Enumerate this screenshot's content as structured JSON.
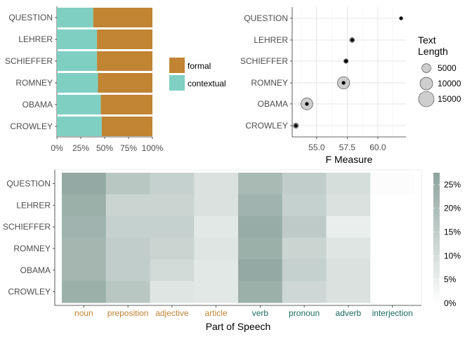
{
  "chart_data": [
    {
      "type": "bar",
      "orientation": "horizontal",
      "stacked": true,
      "categories": [
        "QUESTION",
        "LEHRER",
        "SCHIEFFER",
        "ROMNEY",
        "OBAMA",
        "CROWLEY"
      ],
      "series": [
        {
          "name": "contextual",
          "values": [
            0.38,
            0.42,
            0.42,
            0.43,
            0.46,
            0.47
          ],
          "color": "#7fcfc3"
        },
        {
          "name": "formal",
          "values": [
            0.62,
            0.58,
            0.58,
            0.57,
            0.54,
            0.53
          ],
          "color": "#c08433"
        }
      ],
      "x_ticks": [
        "0%",
        "25%",
        "50%",
        "75%",
        "100%"
      ],
      "legend_labels": [
        "formal",
        "contextual"
      ],
      "xlim": [
        0,
        1
      ]
    },
    {
      "type": "scatter",
      "categories": [
        "QUESTION",
        "LEHRER",
        "SCHIEFFER",
        "ROMNEY",
        "OBAMA",
        "CROWLEY"
      ],
      "f_measure": [
        61.9,
        57.9,
        57.4,
        57.2,
        54.2,
        53.3
      ],
      "text_length": [
        300,
        1500,
        1300,
        9500,
        8800,
        1700
      ],
      "xlabel": "F Measure",
      "x_ticks": [
        55.0,
        57.5,
        60.0
      ],
      "x_tick_labels": [
        "55.0",
        "57.5",
        "60.0"
      ],
      "xlim": [
        53.0,
        62.3
      ],
      "legend": {
        "title_lines": [
          "Text",
          "Length"
        ],
        "sizes": [
          5000,
          10000,
          15000
        ],
        "labels": [
          "5000",
          "10000",
          "15000"
        ]
      }
    },
    {
      "type": "heatmap",
      "rows": [
        "QUESTION",
        "LEHRER",
        "SCHIEFFER",
        "ROMNEY",
        "OBAMA",
        "CROWLEY"
      ],
      "columns": [
        "noun",
        "preposition",
        "adjective",
        "article",
        "verb",
        "pronoun",
        "adverb",
        "interjection"
      ],
      "column_colors": [
        "#c08433",
        "#c08433",
        "#c08433",
        "#c08433",
        "#1a6b60",
        "#1a6b60",
        "#1a6b60",
        "#1a6b60"
      ],
      "values": [
        [
          0.26,
          0.17,
          0.14,
          0.09,
          0.21,
          0.15,
          0.1,
          0.01
        ],
        [
          0.24,
          0.13,
          0.13,
          0.09,
          0.23,
          0.14,
          0.09,
          0.0
        ],
        [
          0.23,
          0.14,
          0.14,
          0.07,
          0.25,
          0.16,
          0.05,
          0.0
        ],
        [
          0.22,
          0.15,
          0.13,
          0.08,
          0.24,
          0.13,
          0.08,
          0.0
        ],
        [
          0.22,
          0.15,
          0.11,
          0.07,
          0.26,
          0.14,
          0.09,
          0.0
        ],
        [
          0.24,
          0.17,
          0.08,
          0.07,
          0.24,
          0.12,
          0.09,
          0.0
        ]
      ],
      "xlabel": "Part of Speech",
      "colorbar_ticks": [
        0,
        0.05,
        0.1,
        0.15,
        0.2,
        0.25
      ],
      "colorbar_labels": [
        "0%",
        "5%",
        "10%",
        "15%",
        "20%",
        "25%"
      ],
      "colorbar_max": 0.275,
      "color_low": "#ffffff",
      "color_high": "#8ea49e"
    }
  ]
}
